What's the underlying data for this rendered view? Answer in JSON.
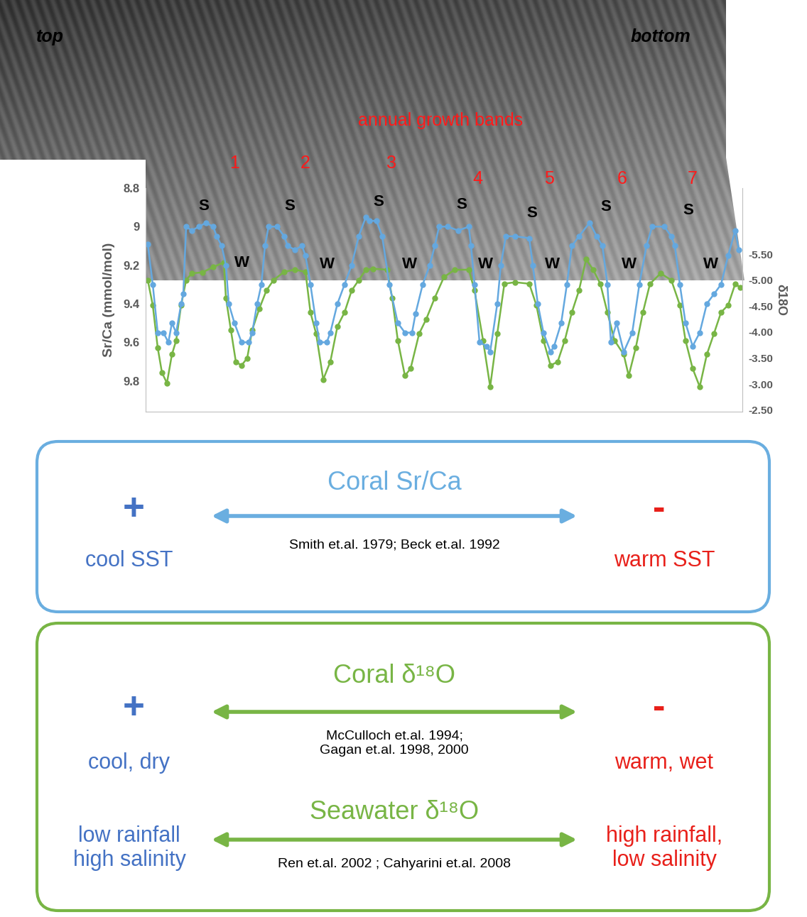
{
  "chart_data": {
    "type": "line",
    "ylabel": "Sr/Ca (mmol/mol)",
    "y2label": "δ18O",
    "xlim": [
      0,
      840
    ],
    "ylim": [
      9.96,
      8.8
    ],
    "yticks": [
      8.8,
      9,
      9.2,
      9.4,
      9.6,
      9.8
    ],
    "y2lim": [
      -2.47,
      -6.77
    ],
    "y2ticks": [
      {
        "value": -5.5,
        "label": "-5.50"
      },
      {
        "value": -5.0,
        "label": "-5.00"
      },
      {
        "value": -4.5,
        "label": "-4.50"
      },
      {
        "value": -4.0,
        "label": "-4.00"
      },
      {
        "value": -3.5,
        "label": "-3.50"
      },
      {
        "value": -3.0,
        "label": "-3.00"
      },
      {
        "value": -2.5,
        "label": "-2.50"
      }
    ],
    "grid": false,
    "tick_labels": "y",
    "series": [
      {
        "color": "#64a8df",
        "marker": "o",
        "line_style": "solid",
        "x": [
          3,
          10,
          17,
          25,
          32,
          37,
          43,
          50,
          53,
          57,
          65,
          75,
          85,
          95,
          100,
          107,
          113,
          117,
          125,
          135,
          145,
          150,
          157,
          163,
          168,
          173,
          185,
          195,
          200,
          210,
          220,
          225,
          232,
          240,
          245,
          255,
          260,
          270,
          280,
          290,
          300,
          310,
          315,
          325,
          333,
          343,
          355,
          365,
          375,
          380,
          390,
          400,
          407,
          413,
          425,
          440,
          455,
          458,
          463,
          470,
          480,
          485,
          495,
          500,
          507,
          520,
          540,
          545,
          552,
          560,
          570,
          575,
          585,
          593,
          600,
          610,
          625,
          635,
          643,
          650,
          655,
          663,
          673,
          685,
          695,
          705,
          713,
          730,
          740,
          745,
          752,
          760,
          770,
          780,
          790,
          800,
          810,
          820,
          830,
          835
        ],
        "values": [
          9.09,
          9.3,
          9.55,
          9.55,
          9.6,
          9.5,
          9.55,
          9.4,
          9.35,
          9.0,
          9.02,
          9.0,
          8.98,
          9.0,
          9.05,
          9.1,
          9.2,
          9.4,
          9.5,
          9.6,
          9.6,
          9.55,
          9.4,
          9.3,
          9.1,
          9.0,
          9.0,
          9.05,
          9.1,
          9.12,
          9.1,
          9.15,
          9.3,
          9.5,
          9.6,
          9.6,
          9.55,
          9.4,
          9.3,
          9.2,
          9.05,
          8.95,
          8.97,
          8.97,
          9.05,
          9.3,
          9.5,
          9.55,
          9.55,
          9.45,
          9.3,
          9.2,
          9.1,
          9.0,
          9.0,
          9.02,
          9.0,
          9.1,
          9.3,
          9.6,
          9.62,
          9.65,
          9.4,
          9.2,
          9.05,
          9.05,
          9.06,
          9.2,
          9.4,
          9.55,
          9.65,
          9.62,
          9.5,
          9.3,
          9.1,
          9.05,
          8.98,
          9.05,
          9.1,
          9.3,
          9.6,
          9.5,
          9.65,
          9.55,
          9.3,
          9.1,
          9.0,
          9.0,
          9.05,
          9.1,
          9.3,
          9.5,
          9.62,
          9.55,
          9.4,
          9.35,
          9.3,
          9.15,
          9.02,
          9.12
        ]
      },
      {
        "color": "#78b545",
        "marker": "o",
        "line_style": "solid",
        "axis": "y2",
        "x": [
          3,
          10,
          17,
          23,
          30,
          37,
          43,
          50,
          57,
          65,
          80,
          95,
          110,
          113,
          120,
          127,
          135,
          143,
          150,
          160,
          170,
          180,
          195,
          210,
          225,
          232,
          240,
          250,
          260,
          270,
          280,
          290,
          300,
          310,
          320,
          340,
          347,
          355,
          365,
          373,
          385,
          395,
          407,
          420,
          435,
          455,
          463,
          475,
          485,
          495,
          505,
          520,
          540,
          550,
          560,
          570,
          580,
          590,
          600,
          610,
          620,
          630,
          640,
          650,
          660,
          673,
          680,
          690,
          700,
          710,
          725,
          740,
          752,
          760,
          770,
          780,
          790,
          800,
          810,
          820,
          830,
          837
        ],
        "values": [
          -5.0,
          -4.52,
          -3.7,
          -3.22,
          -3.02,
          -3.57,
          -3.84,
          -4.52,
          -5.0,
          -5.13,
          -5.15,
          -5.25,
          -5.34,
          -4.66,
          -4.04,
          -3.43,
          -3.36,
          -3.5,
          -4.04,
          -4.45,
          -4.8,
          -5.0,
          -5.16,
          -5.2,
          -5.16,
          -4.38,
          -3.97,
          -3.09,
          -3.43,
          -4.11,
          -4.38,
          -4.8,
          -5.0,
          -5.2,
          -5.22,
          -5.2,
          -4.66,
          -3.84,
          -3.16,
          -3.3,
          -3.97,
          -4.25,
          -4.66,
          -5.06,
          -5.2,
          -5.2,
          -4.8,
          -3.84,
          -2.95,
          -3.97,
          -4.93,
          -4.96,
          -4.93,
          -4.52,
          -3.84,
          -3.36,
          -3.43,
          -3.84,
          -4.38,
          -4.8,
          -5.4,
          -5.2,
          -4.93,
          -4.38,
          -3.84,
          -3.57,
          -3.16,
          -3.7,
          -4.38,
          -4.93,
          -5.13,
          -5.0,
          -4.52,
          -3.84,
          -3.3,
          -2.95,
          -3.57,
          -3.97,
          -4.38,
          -4.52,
          -4.93,
          -4.86
        ]
      }
    ]
  },
  "xray_image": {
    "top_label": "top",
    "bottom_label": "bottom",
    "title": "annual growth bands",
    "band_numbers": [
      "1",
      "2",
      "3",
      "4",
      "5",
      "6",
      "7"
    ],
    "season_labels": [
      "S",
      "W",
      "S",
      "W",
      "S",
      "W",
      "S",
      "W",
      "S",
      "W",
      "S",
      "W",
      "S",
      "W"
    ]
  },
  "boxes": [
    {
      "color": "#6aaee0",
      "rows": [
        {
          "title": "Coral Sr/Ca",
          "left_sign": "+",
          "left": "cool SST",
          "right_sign": "-",
          "right": "warm SST",
          "refs": "Smith et.al. 1979; Beck et.al. 1992"
        }
      ]
    },
    {
      "color": "#78b545",
      "rows": [
        {
          "title": "Coral δ¹⁸O",
          "left_sign": "+",
          "left": "cool, dry",
          "right_sign": "-",
          "right": "warm, wet",
          "refs": "McCulloch et.al. 1994;\nGagan et.al. 1998, 2000"
        },
        {
          "title": "Seawater δ¹⁸O",
          "left": "low rainfall\nhigh salinity",
          "right": "high rainfall,\nlow salinity",
          "refs": "Ren et.al. 2002 ; Cahyarini et.al. 2008"
        }
      ]
    }
  ]
}
